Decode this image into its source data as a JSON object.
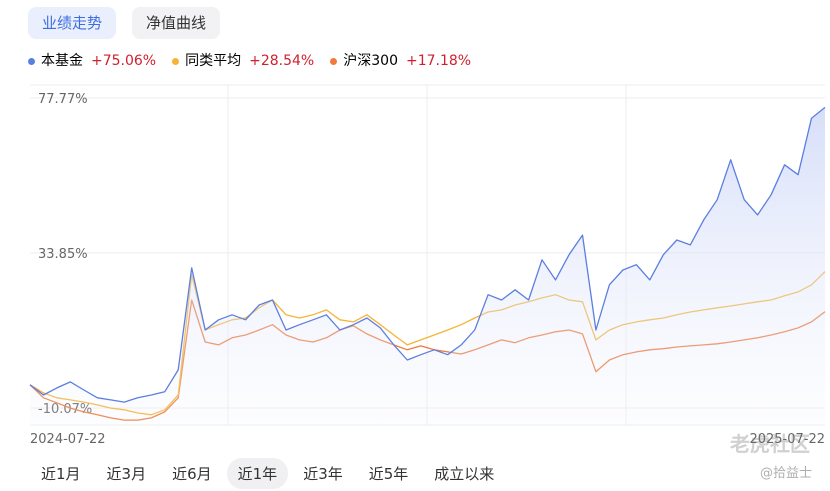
{
  "tabs": [
    "业绩走势",
    "净值曲线"
  ],
  "range_tabs": [
    "近1月",
    "近3月",
    "近6月",
    "近1年",
    "近3年",
    "近5年",
    "成立以来"
  ],
  "watermark": [
    "老虎社区",
    "@拾益士"
  ],
  "chart_data": {
    "type": "line",
    "categories": [
      "2024-07-22",
      null,
      null,
      null,
      null,
      null,
      null,
      null,
      null,
      null,
      null,
      null,
      null,
      null,
      null,
      null,
      null,
      null,
      null,
      null,
      null,
      null,
      null,
      null,
      null,
      null,
      null,
      null,
      null,
      null,
      null,
      null,
      null,
      null,
      null,
      null,
      null,
      null,
      null,
      null,
      null,
      null,
      null,
      null,
      null,
      null,
      null,
      null,
      null,
      null,
      null,
      null,
      null,
      null,
      null,
      null,
      null,
      null,
      null,
      "2025-07-22"
    ],
    "ylim": [
      -14.9,
      81.4
    ],
    "yticks": [
      {
        "value": 77.77,
        "label": "77.77%"
      },
      {
        "value": 33.85,
        "label": "33.85%"
      },
      {
        "value": -10.07,
        "label": "-10.07%"
      }
    ],
    "series": [
      {
        "name": "本基金",
        "return_label": "+75.06%",
        "color": "#5b7fe0",
        "area": true,
        "values": [
          -3.5,
          -6.4,
          -4.4,
          -2.7,
          -5.0,
          -7.2,
          -7.8,
          -8.4,
          -7.2,
          -6.4,
          -5.5,
          0.7,
          29.6,
          12.0,
          14.9,
          16.3,
          14.9,
          19.1,
          20.5,
          12.0,
          13.5,
          14.9,
          16.3,
          12.0,
          13.5,
          15.4,
          12.6,
          7.8,
          3.5,
          5.0,
          6.4,
          5.0,
          7.8,
          12.0,
          22.0,
          20.5,
          23.4,
          20.5,
          31.9,
          26.2,
          33.3,
          38.9,
          12.0,
          24.8,
          29.0,
          30.5,
          26.2,
          33.3,
          37.5,
          36.1,
          43.2,
          48.9,
          60.2,
          48.9,
          44.6,
          50.3,
          58.8,
          56.0,
          72.0,
          75.06
        ]
      },
      {
        "name": "同类平均",
        "return_label": "+28.54%",
        "color": "#f5b435",
        "area": false,
        "values": [
          -3.5,
          -5.8,
          -7.2,
          -7.8,
          -8.4,
          -9.2,
          -10.1,
          -10.6,
          -11.5,
          -12.0,
          -10.6,
          -6.4,
          27.6,
          12.0,
          13.5,
          14.9,
          15.4,
          18.3,
          20.5,
          16.3,
          15.4,
          16.3,
          17.7,
          14.9,
          14.3,
          16.3,
          13.5,
          10.6,
          7.8,
          9.2,
          10.6,
          12.0,
          13.5,
          15.4,
          17.1,
          17.7,
          19.1,
          20.0,
          21.1,
          22.0,
          20.5,
          20.0,
          9.2,
          12.0,
          13.5,
          14.3,
          14.9,
          15.4,
          16.3,
          17.1,
          17.7,
          18.3,
          18.8,
          19.4,
          20.0,
          20.5,
          21.7,
          22.8,
          24.8,
          28.54
        ]
      },
      {
        "name": "沪深300",
        "return_label": "+17.18%",
        "color": "#f07a3c",
        "area": false,
        "values": [
          -3.5,
          -7.2,
          -8.6,
          -10.1,
          -11.2,
          -12.0,
          -12.9,
          -13.5,
          -13.5,
          -12.9,
          -11.2,
          -7.2,
          20.5,
          8.6,
          7.8,
          9.8,
          10.6,
          12.0,
          13.5,
          10.6,
          9.2,
          8.6,
          9.8,
          12.0,
          13.2,
          10.9,
          9.2,
          7.8,
          6.4,
          7.5,
          6.4,
          5.8,
          5.2,
          6.4,
          7.8,
          9.2,
          8.4,
          9.8,
          10.6,
          11.5,
          12.0,
          10.9,
          0.2,
          3.5,
          5.0,
          5.8,
          6.4,
          6.7,
          7.2,
          7.5,
          7.8,
          8.1,
          8.6,
          9.2,
          9.8,
          10.6,
          11.5,
          12.6,
          14.3,
          17.18
        ]
      }
    ]
  }
}
